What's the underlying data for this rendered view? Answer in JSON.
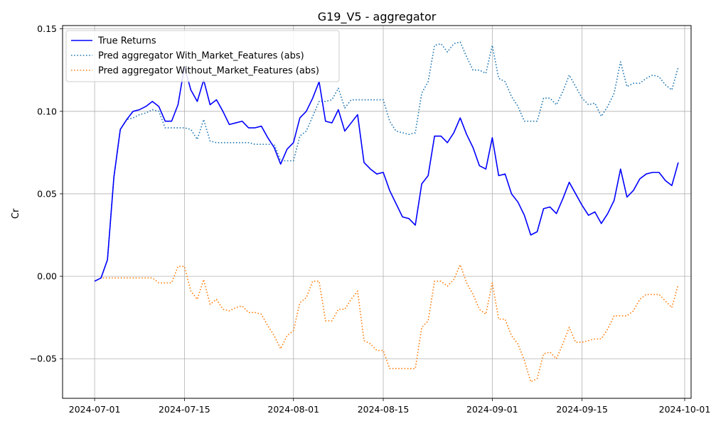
{
  "chart_data": {
    "type": "line",
    "title": "G19_V5 - aggregator",
    "xlabel": "",
    "ylabel": "Cr",
    "xlim": [
      "2024-06-26",
      "2024-10-02"
    ],
    "ylim": [
      -0.074,
      0.152
    ],
    "grid": true,
    "legend_position": "top-left",
    "x_ticks": [
      "2024-07-01",
      "2024-07-15",
      "2024-08-01",
      "2024-08-15",
      "2024-09-01",
      "2024-09-15",
      "2024-10-01"
    ],
    "y_ticks": [
      -0.05,
      0.0,
      0.05,
      0.1,
      0.15
    ],
    "y_tick_labels": [
      "−0.05",
      "0.00",
      "0.05",
      "0.10",
      "0.15"
    ],
    "x": [
      "2024-07-01",
      "2024-07-02",
      "2024-07-03",
      "2024-07-04",
      "2024-07-05",
      "2024-07-06",
      "2024-07-07",
      "2024-07-08",
      "2024-07-09",
      "2024-07-10",
      "2024-07-11",
      "2024-07-12",
      "2024-07-13",
      "2024-07-14",
      "2024-07-15",
      "2024-07-16",
      "2024-07-17",
      "2024-07-18",
      "2024-07-19",
      "2024-07-20",
      "2024-07-21",
      "2024-07-22",
      "2024-07-23",
      "2024-07-24",
      "2024-07-25",
      "2024-07-26",
      "2024-07-27",
      "2024-07-28",
      "2024-07-29",
      "2024-07-30",
      "2024-07-31",
      "2024-08-01",
      "2024-08-02",
      "2024-08-03",
      "2024-08-04",
      "2024-08-05",
      "2024-08-06",
      "2024-08-07",
      "2024-08-08",
      "2024-08-09",
      "2024-08-10",
      "2024-08-11",
      "2024-08-12",
      "2024-08-13",
      "2024-08-14",
      "2024-08-15",
      "2024-08-16",
      "2024-08-17",
      "2024-08-18",
      "2024-08-19",
      "2024-08-20",
      "2024-08-21",
      "2024-08-22",
      "2024-08-23",
      "2024-08-24",
      "2024-08-25",
      "2024-08-26",
      "2024-08-27",
      "2024-08-28",
      "2024-08-29",
      "2024-08-30",
      "2024-08-31",
      "2024-09-01",
      "2024-09-02",
      "2024-09-03",
      "2024-09-04",
      "2024-09-05",
      "2024-09-06",
      "2024-09-07",
      "2024-09-08",
      "2024-09-09",
      "2024-09-10",
      "2024-09-11",
      "2024-09-12",
      "2024-09-13",
      "2024-09-14",
      "2024-09-15",
      "2024-09-16",
      "2024-09-17",
      "2024-09-18",
      "2024-09-19",
      "2024-09-20",
      "2024-09-21",
      "2024-09-22",
      "2024-09-23",
      "2024-09-24",
      "2024-09-25",
      "2024-09-26",
      "2024-09-27",
      "2024-09-28",
      "2024-09-29",
      "2024-09-30"
    ],
    "series": [
      {
        "name": "True Returns",
        "color": "#0000ff",
        "style": "solid",
        "values": [
          -0.003,
          -0.001,
          0.01,
          0.06,
          0.089,
          0.095,
          0.1,
          0.101,
          0.103,
          0.106,
          0.103,
          0.094,
          0.094,
          0.104,
          0.127,
          0.113,
          0.106,
          0.119,
          0.104,
          0.107,
          0.1,
          0.092,
          0.093,
          0.094,
          0.09,
          0.09,
          0.091,
          0.084,
          0.078,
          0.068,
          0.077,
          0.081,
          0.096,
          0.1,
          0.108,
          0.118,
          0.094,
          0.093,
          0.101,
          0.088,
          0.093,
          0.098,
          0.069,
          0.065,
          0.062,
          0.063,
          0.052,
          0.044,
          0.036,
          0.035,
          0.031,
          0.056,
          0.061,
          0.085,
          0.085,
          0.081,
          0.087,
          0.096,
          0.086,
          0.078,
          0.067,
          0.065,
          0.084,
          0.061,
          0.062,
          0.05,
          0.045,
          0.037,
          0.025,
          0.027,
          0.041,
          0.042,
          0.038,
          0.047,
          0.057,
          0.05,
          0.043,
          0.037,
          0.039,
          0.032,
          0.038,
          0.046,
          0.065,
          0.048,
          0.052,
          0.059,
          0.062,
          0.063,
          0.063,
          0.058,
          0.055,
          0.069
        ]
      },
      {
        "name": "Pred aggregator With_Market_Features (abs)",
        "color": "#1f77b4",
        "style": "dotted",
        "values": [
          -0.003,
          -0.001,
          0.01,
          0.06,
          0.089,
          0.095,
          0.096,
          0.098,
          0.099,
          0.101,
          0.1,
          0.09,
          0.09,
          0.09,
          0.09,
          0.089,
          0.083,
          0.095,
          0.082,
          0.081,
          0.081,
          0.081,
          0.081,
          0.081,
          0.081,
          0.08,
          0.08,
          0.08,
          0.08,
          0.07,
          0.07,
          0.07,
          0.085,
          0.088,
          0.097,
          0.106,
          0.106,
          0.107,
          0.114,
          0.102,
          0.107,
          0.107,
          0.107,
          0.107,
          0.107,
          0.107,
          0.094,
          0.088,
          0.087,
          0.086,
          0.087,
          0.111,
          0.118,
          0.14,
          0.141,
          0.136,
          0.141,
          0.142,
          0.133,
          0.125,
          0.125,
          0.123,
          0.14,
          0.12,
          0.118,
          0.109,
          0.103,
          0.094,
          0.094,
          0.094,
          0.108,
          0.108,
          0.104,
          0.112,
          0.122,
          0.115,
          0.108,
          0.104,
          0.105,
          0.097,
          0.103,
          0.111,
          0.13,
          0.115,
          0.117,
          0.117,
          0.12,
          0.122,
          0.121,
          0.116,
          0.113,
          0.127
        ]
      },
      {
        "name": "Pred aggregator Without_Market_Features (abs)",
        "color": "#ff7f0e",
        "style": "dotted",
        "values": [
          -0.003,
          -0.001,
          -0.001,
          -0.001,
          -0.001,
          -0.001,
          -0.001,
          -0.001,
          -0.001,
          -0.001,
          -0.004,
          -0.004,
          -0.004,
          0.006,
          0.006,
          -0.009,
          -0.014,
          -0.002,
          -0.017,
          -0.014,
          -0.02,
          -0.021,
          -0.019,
          -0.018,
          -0.022,
          -0.022,
          -0.023,
          -0.03,
          -0.036,
          -0.044,
          -0.036,
          -0.033,
          -0.016,
          -0.013,
          -0.003,
          -0.003,
          -0.027,
          -0.027,
          -0.02,
          -0.02,
          -0.014,
          -0.009,
          -0.039,
          -0.041,
          -0.045,
          -0.045,
          -0.056,
          -0.056,
          -0.056,
          -0.056,
          -0.056,
          -0.031,
          -0.027,
          -0.003,
          -0.003,
          -0.006,
          -0.002,
          0.007,
          -0.004,
          -0.011,
          -0.02,
          -0.023,
          -0.004,
          -0.026,
          -0.026,
          -0.036,
          -0.041,
          -0.051,
          -0.064,
          -0.062,
          -0.047,
          -0.046,
          -0.05,
          -0.041,
          -0.031,
          -0.04,
          -0.04,
          -0.039,
          -0.038,
          -0.038,
          -0.032,
          -0.024,
          -0.024,
          -0.024,
          -0.021,
          -0.014,
          -0.011,
          -0.011,
          -0.011,
          -0.015,
          -0.019,
          -0.005
        ]
      }
    ]
  }
}
